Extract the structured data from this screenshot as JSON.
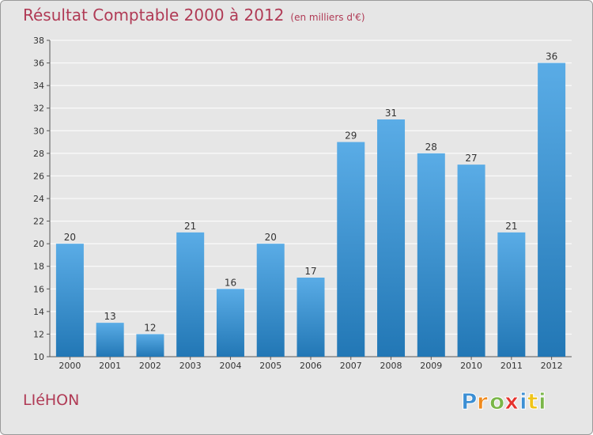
{
  "colors": {
    "title": "#b03a55",
    "bar_top": "#5aace6",
    "bar_bottom": "#2277b5",
    "background": "#e6e6e6"
  },
  "header": {
    "title": "Résultat Comptable 2000 à 2012",
    "subtitle": "(en milliers d'€)"
  },
  "footer": {
    "town": "LIéHON",
    "logo_text": "Proxiti"
  },
  "chart_data": {
    "type": "bar",
    "title": "Résultat Comptable 2000 à 2012",
    "subtitle": "(en milliers d'€)",
    "categories": [
      "2000",
      "2001",
      "2002",
      "2003",
      "2004",
      "2005",
      "2006",
      "2007",
      "2008",
      "2009",
      "2010",
      "2011",
      "2012"
    ],
    "values": [
      20,
      13,
      12,
      21,
      16,
      20,
      17,
      29,
      31,
      28,
      27,
      21,
      36
    ],
    "ylim": [
      10,
      38
    ],
    "yticks": [
      10,
      12,
      14,
      16,
      18,
      20,
      22,
      24,
      26,
      28,
      30,
      32,
      34,
      36,
      38
    ],
    "xlabel": "",
    "ylabel": "",
    "grid": true
  }
}
